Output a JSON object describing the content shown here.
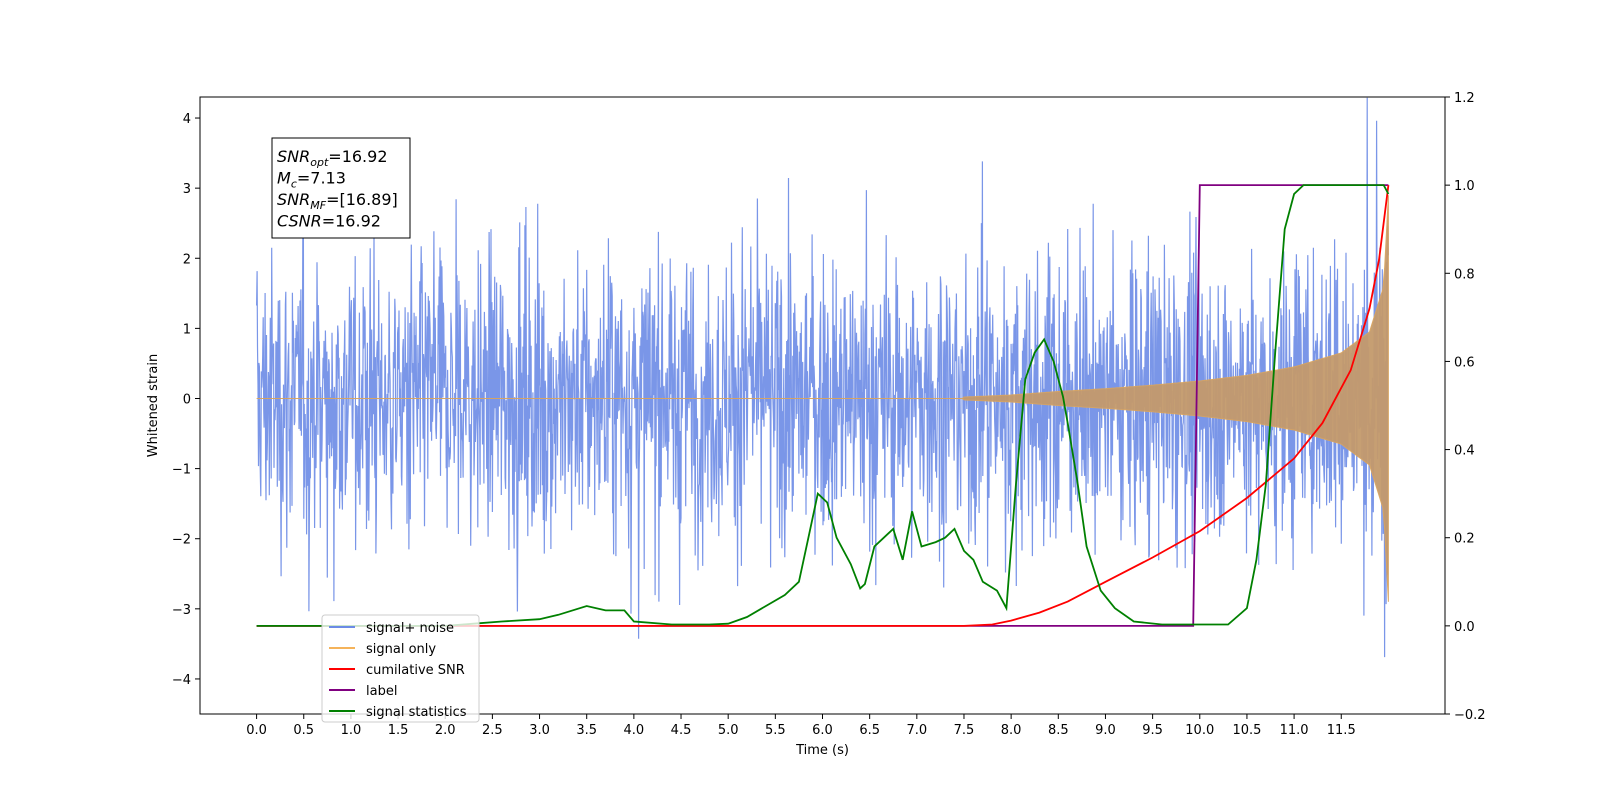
{
  "chart_data": {
    "type": "line",
    "xlabel": "Time (s)",
    "ylabel": "Whitened strain",
    "xlim": [
      -0.6,
      12.6
    ],
    "ylim_left": [
      -4.5,
      4.3
    ],
    "ylim_right": [
      -0.2,
      1.2
    ],
    "x_ticks": [
      "0.0",
      "0.5",
      "1.0",
      "1.5",
      "2.0",
      "2.5",
      "3.0",
      "3.5",
      "4.0",
      "4.5",
      "5.0",
      "5.5",
      "6.0",
      "6.5",
      "7.0",
      "7.5",
      "8.0",
      "8.5",
      "9.0",
      "9.5",
      "10.0",
      "10.5",
      "11.0",
      "11.5"
    ],
    "y_ticks_left": [
      "-4",
      "-3",
      "-2",
      "-1",
      "0",
      "1",
      "2",
      "3",
      "4"
    ],
    "y_ticks_right": [
      "-0.2",
      "0.0",
      "0.2",
      "0.4",
      "0.6",
      "0.8",
      "1.0",
      "1.2"
    ],
    "annotation": {
      "snr_opt": "16.92",
      "mc": "7.13",
      "snr_mf": "[16.89]",
      "csnr": "16.92"
    },
    "series": [
      {
        "name": "signal+ noise",
        "color": "#6b8be6",
        "axis": "left",
        "description": "random noise around zero, amplitude roughly ±3, extremes near ±3.9, plus chirp signal",
        "x_range": [
          0,
          12.0
        ],
        "noise_sigma": 1.0
      },
      {
        "name": "signal only",
        "color": "#f5b35a",
        "axis": "left",
        "description": "chirp with envelope growing from ~0 at t=7.5 to ~±2.9 at t=12",
        "envelope_points": [
          [
            7.5,
            0.02
          ],
          [
            8.0,
            0.05
          ],
          [
            8.5,
            0.1
          ],
          [
            9.0,
            0.14
          ],
          [
            9.5,
            0.19
          ],
          [
            10.0,
            0.25
          ],
          [
            10.5,
            0.33
          ],
          [
            11.0,
            0.45
          ],
          [
            11.5,
            0.65
          ],
          [
            11.8,
            0.95
          ],
          [
            11.95,
            1.6
          ],
          [
            12.0,
            2.9
          ]
        ]
      },
      {
        "name": "cumilative SNR",
        "color": "#ff0000",
        "axis": "right",
        "points": [
          [
            0,
            0
          ],
          [
            7.5,
            0
          ],
          [
            7.8,
            0.003
          ],
          [
            8.0,
            0.012
          ],
          [
            8.3,
            0.03
          ],
          [
            8.6,
            0.055
          ],
          [
            9.0,
            0.1
          ],
          [
            9.5,
            0.155
          ],
          [
            10.0,
            0.215
          ],
          [
            10.5,
            0.29
          ],
          [
            11.0,
            0.38
          ],
          [
            11.3,
            0.46
          ],
          [
            11.6,
            0.58
          ],
          [
            11.8,
            0.72
          ],
          [
            11.9,
            0.83
          ],
          [
            12.0,
            1.0
          ]
        ]
      },
      {
        "name": "label",
        "color": "#800080",
        "axis": "right",
        "points": [
          [
            0,
            0
          ],
          [
            9.93,
            0
          ],
          [
            10.0,
            1.0
          ],
          [
            12.0,
            1.0
          ]
        ]
      },
      {
        "name": "signal statistics",
        "color": "#008000",
        "axis": "right",
        "points": [
          [
            0,
            0
          ],
          [
            2.0,
            0
          ],
          [
            2.3,
            0.005
          ],
          [
            2.6,
            0.01
          ],
          [
            3.0,
            0.015
          ],
          [
            3.2,
            0.025
          ],
          [
            3.5,
            0.045
          ],
          [
            3.7,
            0.035
          ],
          [
            3.9,
            0.035
          ],
          [
            4.0,
            0.01
          ],
          [
            4.4,
            0.003
          ],
          [
            4.8,
            0.003
          ],
          [
            5.0,
            0.005
          ],
          [
            5.2,
            0.02
          ],
          [
            5.4,
            0.045
          ],
          [
            5.6,
            0.07
          ],
          [
            5.75,
            0.1
          ],
          [
            5.85,
            0.2
          ],
          [
            5.95,
            0.3
          ],
          [
            6.05,
            0.28
          ],
          [
            6.15,
            0.2
          ],
          [
            6.3,
            0.14
          ],
          [
            6.4,
            0.085
          ],
          [
            6.45,
            0.095
          ],
          [
            6.55,
            0.18
          ],
          [
            6.65,
            0.2
          ],
          [
            6.75,
            0.22
          ],
          [
            6.85,
            0.15
          ],
          [
            6.95,
            0.26
          ],
          [
            7.05,
            0.18
          ],
          [
            7.2,
            0.19
          ],
          [
            7.3,
            0.2
          ],
          [
            7.4,
            0.22
          ],
          [
            7.5,
            0.17
          ],
          [
            7.6,
            0.15
          ],
          [
            7.7,
            0.1
          ],
          [
            7.85,
            0.08
          ],
          [
            7.95,
            0.04
          ],
          [
            8.05,
            0.32
          ],
          [
            8.15,
            0.56
          ],
          [
            8.25,
            0.62
          ],
          [
            8.35,
            0.65
          ],
          [
            8.45,
            0.6
          ],
          [
            8.55,
            0.52
          ],
          [
            8.6,
            0.46
          ],
          [
            8.7,
            0.33
          ],
          [
            8.8,
            0.18
          ],
          [
            8.95,
            0.08
          ],
          [
            9.1,
            0.04
          ],
          [
            9.3,
            0.01
          ],
          [
            9.6,
            0.003
          ],
          [
            10.3,
            0.003
          ],
          [
            10.5,
            0.04
          ],
          [
            10.6,
            0.15
          ],
          [
            10.7,
            0.32
          ],
          [
            10.8,
            0.62
          ],
          [
            10.9,
            0.9
          ],
          [
            11.0,
            0.98
          ],
          [
            11.1,
            1.0
          ],
          [
            11.95,
            1.0
          ],
          [
            12.0,
            0.98
          ]
        ]
      }
    ],
    "legend": {
      "placement": "lower-left",
      "entries": [
        {
          "label": "signal+ noise",
          "color": "#6b8be6"
        },
        {
          "label": "signal only",
          "color": "#f5b35a"
        },
        {
          "label": "cumilative SNR",
          "color": "#ff0000"
        },
        {
          "label": "label",
          "color": "#800080"
        },
        {
          "label": "signal statistics",
          "color": "#008000"
        }
      ]
    }
  }
}
